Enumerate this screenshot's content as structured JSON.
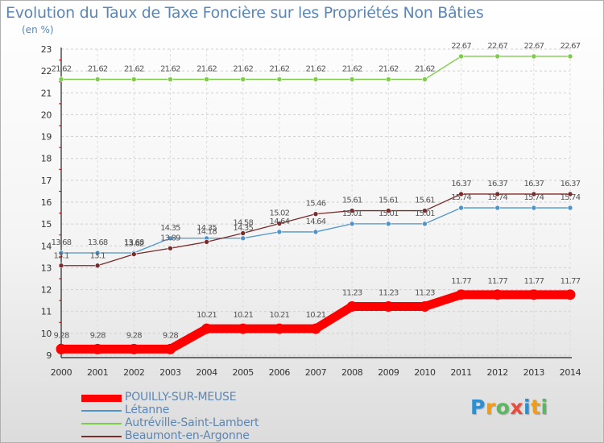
{
  "chart_data": {
    "type": "line",
    "title": "Evolution du Taux de Taxe Foncière sur les Propriétés Non Bâties",
    "ylabel": "(en %)",
    "xlabel": "",
    "x": [
      "2000",
      "2001",
      "2002",
      "2003",
      "2004",
      "2005",
      "2006",
      "2007",
      "2008",
      "2009",
      "2010",
      "2011",
      "2012",
      "2013",
      "2014"
    ],
    "ylim": [
      9,
      23
    ],
    "yticks": [
      "9",
      "10",
      "11",
      "12",
      "13",
      "14",
      "15",
      "16",
      "17",
      "18",
      "19",
      "20",
      "21",
      "22",
      "23"
    ],
    "grid": "horizontal dashed",
    "legend": "bottom-left",
    "series": [
      {
        "name": "Létanne",
        "color": "#4f93c8",
        "values": [
          13.68,
          13.68,
          13.68,
          14.35,
          14.35,
          14.35,
          14.64,
          14.64,
          15.01,
          15.01,
          15.01,
          15.74,
          15.74,
          15.74,
          15.74
        ],
        "labels": [
          "13.68",
          "13.68",
          "13.68",
          "14.35",
          "14.35",
          "14.35",
          "14.64",
          "14.64",
          "15.01",
          "15.01",
          "15.01",
          "15.74",
          "15.74",
          "15.74",
          "15.74"
        ]
      },
      {
        "name": "Autréville-Saint-Lambert",
        "color": "#7ccb4a",
        "values": [
          21.62,
          21.62,
          21.62,
          21.62,
          21.62,
          21.62,
          21.62,
          21.62,
          21.62,
          21.62,
          21.62,
          22.67,
          22.67,
          22.67,
          22.67
        ],
        "labels": [
          "21.62",
          "21.62",
          "21.62",
          "21.62",
          "21.62",
          "21.62",
          "21.62",
          "21.62",
          "21.62",
          "21.62",
          "21.62",
          "22.67",
          "22.67",
          "22.67",
          "22.67"
        ]
      },
      {
        "name": "Beaumont-en-Argonne",
        "color": "#7a2b2b",
        "values": [
          13.1,
          13.1,
          13.62,
          13.89,
          14.18,
          14.58,
          15.02,
          15.46,
          15.61,
          15.61,
          15.61,
          16.37,
          16.37,
          16.37,
          16.37
        ],
        "labels": [
          "13.1",
          "13.1",
          "13.62",
          "13.89",
          "14.18",
          "14.58",
          "15.02",
          "15.46",
          "15.61",
          "15.61",
          "15.61",
          "16.37",
          "16.37",
          "16.37",
          "16.37"
        ]
      },
      {
        "name": "POUILLY-SUR-MEUSE",
        "color": "#ff0000",
        "values": [
          9.28,
          9.28,
          9.28,
          9.28,
          10.21,
          10.21,
          10.21,
          10.21,
          11.23,
          11.23,
          11.23,
          11.77,
          11.77,
          11.77,
          11.77
        ],
        "labels": [
          "9.28",
          "9.28",
          "9.28",
          "9.28",
          "10.21",
          "10.21",
          "10.21",
          "10.21",
          "11.23",
          "11.23",
          "11.23",
          "11.77",
          "11.77",
          "11.77",
          "11.77"
        ]
      }
    ]
  },
  "legend": {
    "items": [
      {
        "label": "POUILLY-SUR-MEUSE",
        "color": "#ff0000"
      },
      {
        "label": "Létanne",
        "color": "#4f93c8"
      },
      {
        "label": "Autréville-Saint-Lambert",
        "color": "#7ccb4a"
      },
      {
        "label": "Beaumont-en-Argonne",
        "color": "#7a2b2b"
      }
    ]
  },
  "brand": {
    "letters": [
      "P",
      "r",
      "o",
      "x",
      "i",
      "t",
      "i"
    ],
    "colors": [
      "#2e8fd0",
      "#f39c12",
      "#5cb85c",
      "#e74c3c",
      "#2e8fd0",
      "#f39c12",
      "#5cb85c"
    ]
  }
}
